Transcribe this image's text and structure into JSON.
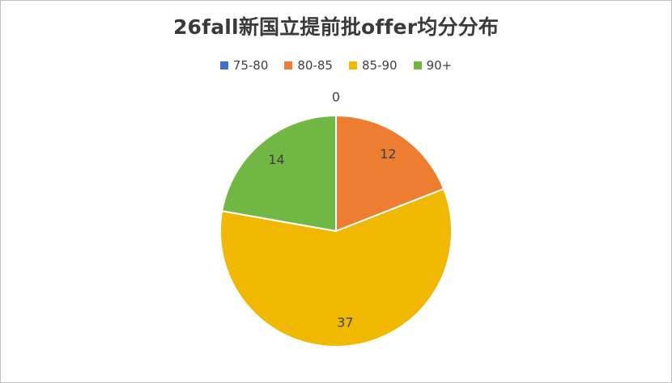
{
  "chart_data": {
    "type": "pie",
    "title": "26fall新国立提前批offer均分分布",
    "categories": [
      "75-80",
      "80-85",
      "85-90",
      "90+"
    ],
    "values": [
      0,
      12,
      37,
      14
    ],
    "colors": [
      "#4472c4",
      "#ed7d31",
      "#f0b800",
      "#70b843"
    ],
    "legend_position": "top",
    "data_labels": [
      "0",
      "12",
      "37",
      "14"
    ]
  }
}
